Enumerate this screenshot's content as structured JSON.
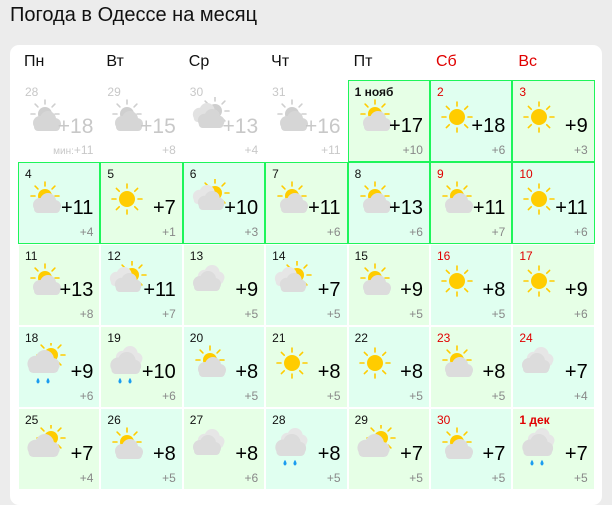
{
  "title": "Погода в Одессе на месяц",
  "colors": {
    "weekend": "#e00000",
    "highlight_border": "#1ef55a",
    "sun": "#ffcc00",
    "cloud": "#dcdcdc",
    "rain": "#1a9cf0"
  },
  "weekdays": [
    {
      "label": "Пн",
      "weekend": false
    },
    {
      "label": "Вт",
      "weekend": false
    },
    {
      "label": "Ср",
      "weekend": false
    },
    {
      "label": "Чт",
      "weekend": false
    },
    {
      "label": "Пт",
      "weekend": false
    },
    {
      "label": "Сб",
      "weekend": true
    },
    {
      "label": "Вс",
      "weekend": true
    }
  ],
  "min_prefix": "мин:",
  "days": [
    {
      "day": "28",
      "icon": "sun-cloud",
      "max": "+18",
      "min": "+11",
      "past": true
    },
    {
      "day": "29",
      "icon": "sun-cloud",
      "max": "+15",
      "min": "+8",
      "past": true
    },
    {
      "day": "30",
      "icon": "clouds-sun",
      "max": "+13",
      "min": "+4",
      "past": true
    },
    {
      "day": "31",
      "icon": "sun-cloud",
      "max": "+16",
      "min": "+11",
      "past": true
    },
    {
      "day": "1 нояб",
      "icon": "sun-cloud",
      "max": "+17",
      "min": "+10",
      "highlight": true
    },
    {
      "day": "2",
      "icon": "sun",
      "max": "+18",
      "min": "+6",
      "weekend": true,
      "highlight": true
    },
    {
      "day": "3",
      "icon": "sun",
      "max": "+9",
      "min": "+3",
      "weekend": true,
      "highlight": true
    },
    {
      "day": "4",
      "icon": "sun-cloud",
      "max": "+11",
      "min": "+4",
      "highlight": true
    },
    {
      "day": "5",
      "icon": "sun",
      "max": "+7",
      "min": "+1",
      "highlight": true
    },
    {
      "day": "6",
      "icon": "clouds-sun",
      "max": "+10",
      "min": "+3",
      "highlight": true
    },
    {
      "day": "7",
      "icon": "sun-cloud",
      "max": "+11",
      "min": "+6",
      "highlight": true
    },
    {
      "day": "8",
      "icon": "sun-cloud",
      "max": "+13",
      "min": "+6",
      "highlight": true
    },
    {
      "day": "9",
      "icon": "sun-cloud",
      "max": "+11",
      "min": "+7",
      "weekend": true,
      "highlight": true
    },
    {
      "day": "10",
      "icon": "sun",
      "max": "+11",
      "min": "+6",
      "weekend": true,
      "highlight": true
    },
    {
      "day": "11",
      "icon": "sun-cloud",
      "max": "+13",
      "min": "+8"
    },
    {
      "day": "12",
      "icon": "clouds-sun",
      "max": "+11",
      "min": "+7"
    },
    {
      "day": "13",
      "icon": "clouds",
      "max": "+9",
      "min": "+5"
    },
    {
      "day": "14",
      "icon": "clouds-sun",
      "max": "+7",
      "min": "+5"
    },
    {
      "day": "15",
      "icon": "sun-cloud",
      "max": "+9",
      "min": "+5"
    },
    {
      "day": "16",
      "icon": "sun",
      "max": "+8",
      "min": "+5",
      "weekend": true
    },
    {
      "day": "17",
      "icon": "sun",
      "max": "+9",
      "min": "+6",
      "weekend": true
    },
    {
      "day": "18",
      "icon": "cloud-sun-rain",
      "max": "+9",
      "min": "+6"
    },
    {
      "day": "19",
      "icon": "clouds-rain",
      "max": "+10",
      "min": "+6"
    },
    {
      "day": "20",
      "icon": "sun-cloud",
      "max": "+8",
      "min": "+5"
    },
    {
      "day": "21",
      "icon": "sun",
      "max": "+8",
      "min": "+5"
    },
    {
      "day": "22",
      "icon": "sun",
      "max": "+8",
      "min": "+5"
    },
    {
      "day": "23",
      "icon": "sun-cloud",
      "max": "+8",
      "min": "+5",
      "weekend": true
    },
    {
      "day": "24",
      "icon": "clouds",
      "max": "+7",
      "min": "+4",
      "weekend": true
    },
    {
      "day": "25",
      "icon": "cloud-sun",
      "max": "+7",
      "min": "+4"
    },
    {
      "day": "26",
      "icon": "sun-cloud",
      "max": "+8",
      "min": "+5"
    },
    {
      "day": "27",
      "icon": "clouds",
      "max": "+8",
      "min": "+6"
    },
    {
      "day": "28",
      "icon": "clouds-rain",
      "max": "+8",
      "min": "+5"
    },
    {
      "day": "29",
      "icon": "cloud-sun",
      "max": "+7",
      "min": "+5"
    },
    {
      "day": "30",
      "icon": "sun-cloud",
      "max": "+7",
      "min": "+5",
      "weekend": true
    },
    {
      "day": "1 дек",
      "icon": "clouds-rain",
      "max": "+7",
      "min": "+5",
      "weekend": true
    }
  ]
}
